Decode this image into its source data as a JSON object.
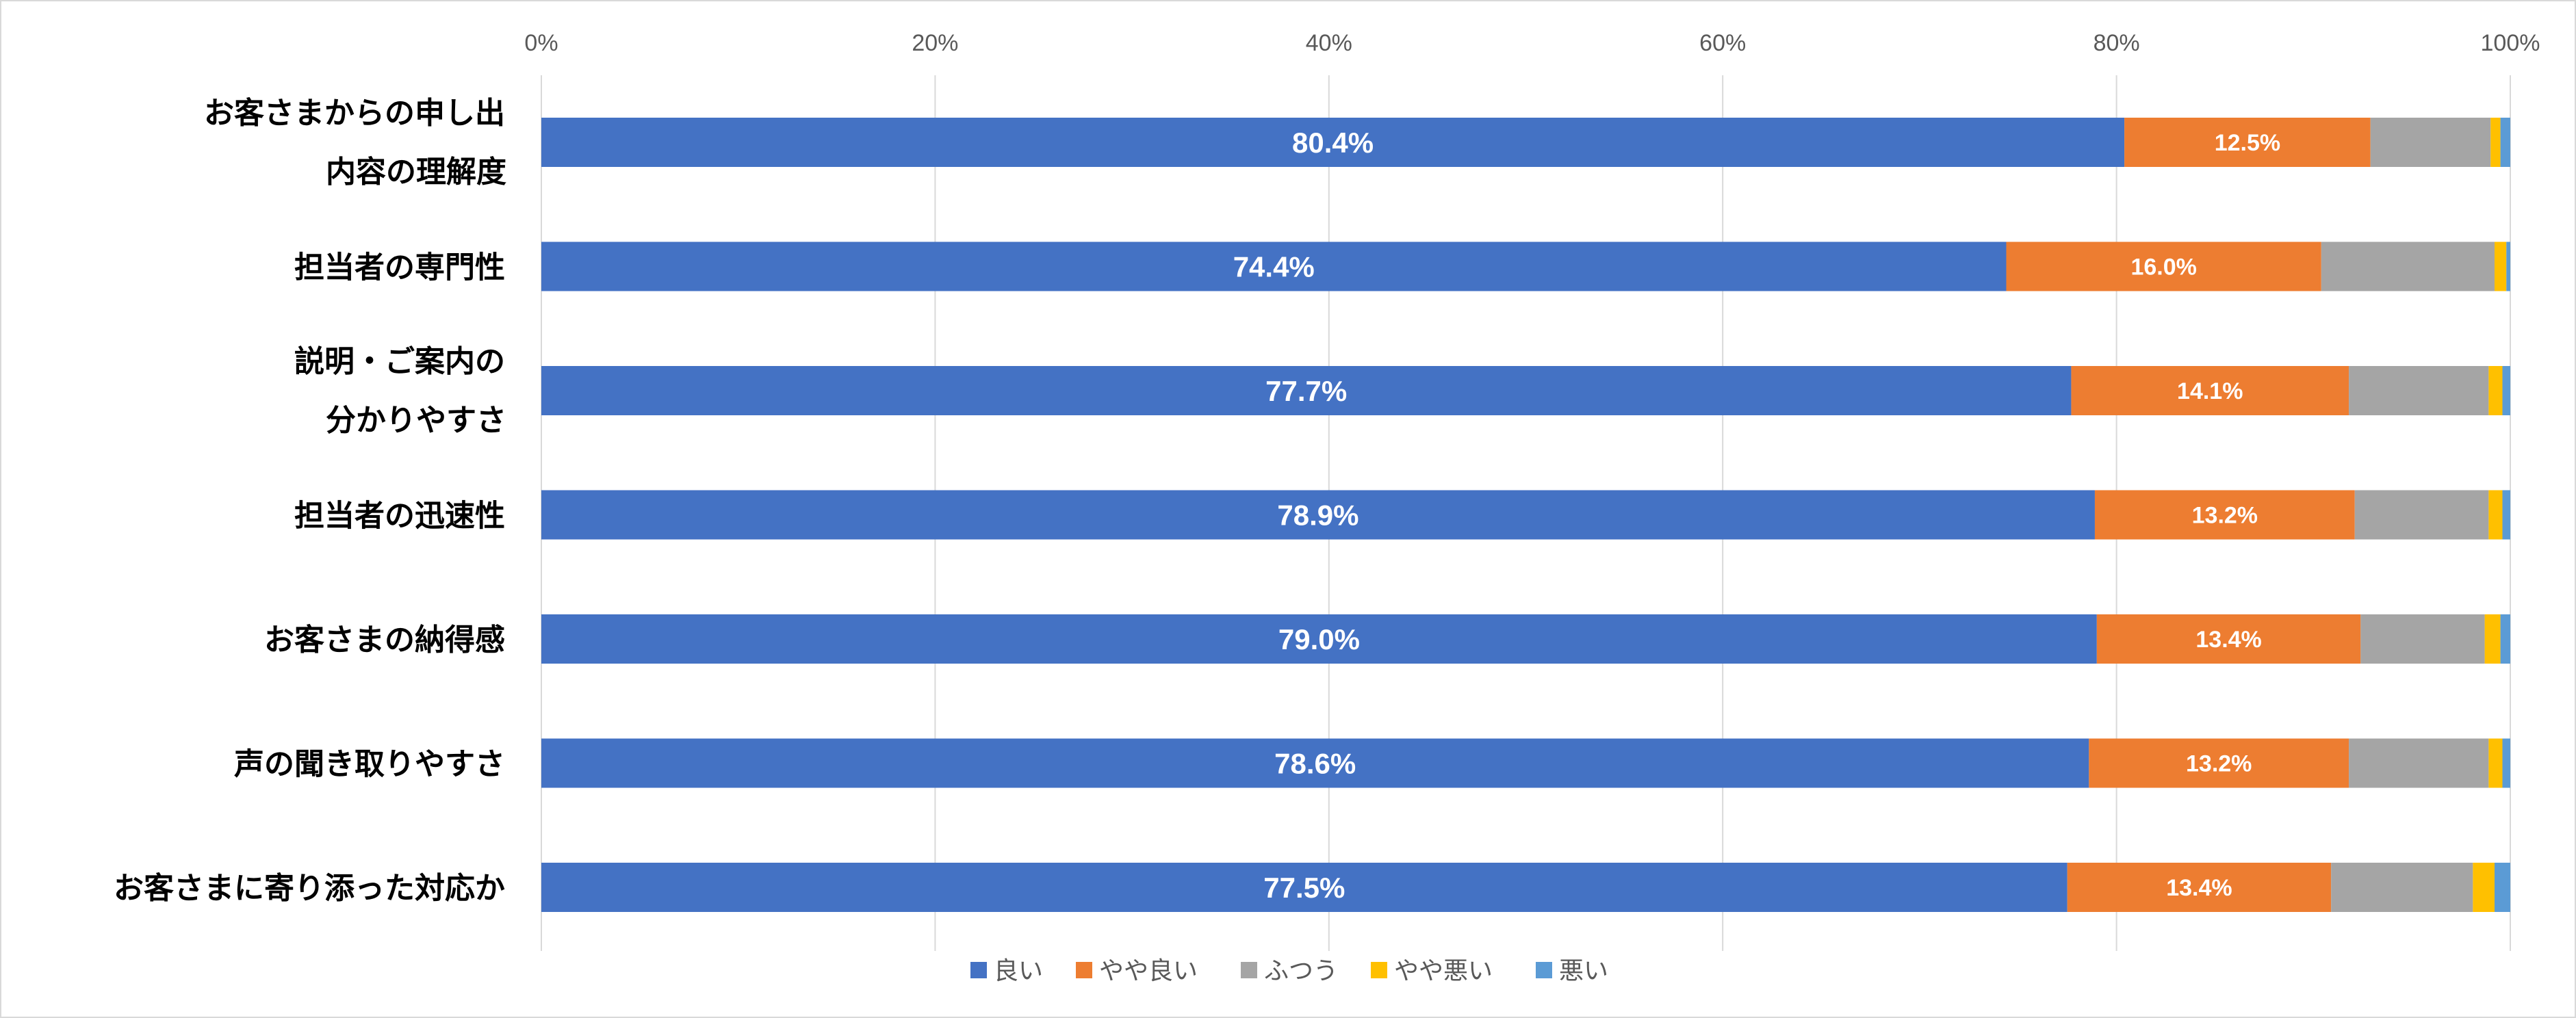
{
  "chart_data": {
    "type": "bar",
    "orientation": "horizontal",
    "stacked": "percent",
    "categories": [
      "お客さまからの申し出内容の理解度",
      "担当者の専門性",
      "説明・ご案内の分かりやすさ",
      "担当者の迅速性",
      "お客さまの納得感",
      "声の聞き取りやすさ",
      "お客さまに寄り添った対応か"
    ],
    "category_label_lines": [
      [
        "お客さまからの申し出",
        "内容の理解度"
      ],
      [
        "担当者の専門性"
      ],
      [
        "説明・ご案内の",
        "分かりやすさ"
      ],
      [
        "担当者の迅速性"
      ],
      [
        "お客さまの納得感"
      ],
      [
        "声の聞き取りやすさ"
      ],
      [
        "お客さまに寄り添った対応か"
      ]
    ],
    "series": [
      {
        "name": "良い",
        "color": "#4472C4",
        "values": [
          80.4,
          74.4,
          77.7,
          78.9,
          79.0,
          78.6,
          77.5
        ],
        "labels": [
          "80.4%",
          "74.4%",
          "77.7%",
          "78.9%",
          "79.0%",
          "78.6%",
          "77.5%"
        ]
      },
      {
        "name": "やや良い",
        "color": "#ED7D31",
        "values": [
          12.5,
          16.0,
          14.1,
          13.2,
          13.4,
          13.2,
          13.4
        ],
        "labels": [
          "12.5%",
          "16.0%",
          "14.1%",
          "13.2%",
          "13.4%",
          "13.2%",
          "13.4%"
        ]
      },
      {
        "name": "ふつう",
        "color": "#A5A5A5",
        "values": [
          6.1,
          8.8,
          7.1,
          6.8,
          6.3,
          7.1,
          7.2
        ]
      },
      {
        "name": "やや悪い",
        "color": "#FFC000",
        "values": [
          0.5,
          0.6,
          0.7,
          0.7,
          0.8,
          0.7,
          1.1
        ]
      },
      {
        "name": "悪い",
        "color": "#5B9BD5",
        "values": [
          0.5,
          0.2,
          0.4,
          0.4,
          0.5,
          0.4,
          0.8
        ]
      }
    ],
    "xlim": [
      0,
      100
    ],
    "x_ticks": [
      "0%",
      "20%",
      "40%",
      "60%",
      "80%",
      "100%"
    ],
    "x_tick_values": [
      0,
      20,
      40,
      60,
      80,
      100
    ],
    "grid": true,
    "legend": "bottom"
  }
}
